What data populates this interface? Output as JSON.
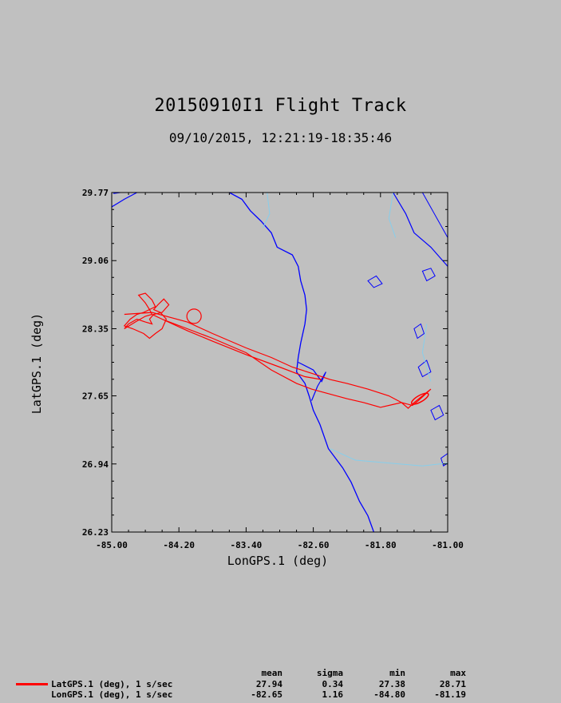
{
  "chart_data": {
    "type": "line",
    "title": "20150910I1 Flight Track",
    "subtitle": "09/10/2015, 12:21:19-18:35:46",
    "xlabel": "LonGPS.1 (deg)",
    "ylabel": "LatGPS.1 (deg)",
    "xlim": [
      -85.0,
      -81.0
    ],
    "ylim": [
      26.23,
      29.77
    ],
    "x_ticks": [
      "-85.00",
      "-84.20",
      "-83.40",
      "-82.60",
      "-81.80",
      "-81.00"
    ],
    "y_ticks": [
      "26.23",
      "26.94",
      "27.65",
      "28.35",
      "29.06",
      "29.77"
    ],
    "grid": false,
    "colors": {
      "track": "#ff0000",
      "coast": "#0000ff",
      "rivers": "#87ceeb",
      "background": "#c0c0c0"
    },
    "series": [
      {
        "x": [
          -84.85,
          -84.52,
          -84.35,
          -84.1,
          -83.8,
          -83.4,
          -83.1,
          -82.85,
          -82.6,
          -82.4,
          -82.2,
          -81.95,
          -81.7,
          -81.55,
          -81.47,
          -81.4,
          -81.3,
          -81.2,
          -81.25,
          -81.35,
          -81.42,
          -81.55,
          -81.8,
          -82.0,
          -82.2,
          -82.45,
          -82.62,
          -82.8,
          -83.1,
          -83.4,
          -83.8,
          -84.1,
          -84.4,
          -84.52,
          -84.55,
          -84.6,
          -84.68,
          -84.6,
          -84.52,
          -84.48,
          -84.55,
          -84.62,
          -84.7,
          -84.78,
          -84.85,
          -84.75,
          -84.62,
          -84.55,
          -84.48,
          -84.4,
          -84.35,
          -84.42,
          -84.5,
          -84.45,
          -84.38,
          -84.32,
          -84.4,
          -84.5,
          -84.55,
          -84.52,
          -84.6,
          -84.7,
          -84.8,
          -84.85,
          -84.72,
          -84.6,
          -84.52,
          -84.52,
          -84.4,
          -84.1,
          -83.8,
          -83.4,
          -83.0,
          -82.7,
          -82.5
        ],
        "y": [
          28.5,
          28.52,
          28.48,
          28.42,
          28.3,
          28.15,
          28.05,
          27.95,
          27.88,
          27.82,
          27.78,
          27.72,
          27.65,
          27.58,
          27.52,
          27.58,
          27.65,
          27.72,
          27.68,
          27.6,
          27.55,
          27.58,
          27.53,
          27.58,
          27.62,
          27.68,
          27.72,
          27.78,
          27.92,
          28.1,
          28.25,
          28.35,
          28.45,
          28.5,
          28.55,
          28.62,
          28.7,
          28.72,
          28.65,
          28.58,
          28.55,
          28.52,
          28.5,
          28.45,
          28.38,
          28.35,
          28.3,
          28.25,
          28.3,
          28.35,
          28.45,
          28.52,
          28.55,
          28.6,
          28.66,
          28.6,
          28.52,
          28.5,
          28.45,
          28.4,
          28.42,
          28.45,
          28.4,
          28.35,
          28.42,
          28.48,
          28.5,
          28.5,
          28.45,
          28.33,
          28.22,
          28.08,
          27.95,
          27.85,
          27.82
        ]
      }
    ]
  },
  "stats": {
    "headers": [
      "mean",
      "sigma",
      "min",
      "max"
    ],
    "rows": [
      {
        "label": "LatGPS.1 (deg), 1 s/sec",
        "values": [
          "27.94",
          "0.34",
          "27.38",
          "28.71"
        ],
        "color": "#ff0000"
      },
      {
        "label": "LonGPS.1 (deg), 1 s/sec",
        "values": [
          "-82.65",
          "1.16",
          "-84.80",
          "-81.19"
        ]
      }
    ]
  }
}
